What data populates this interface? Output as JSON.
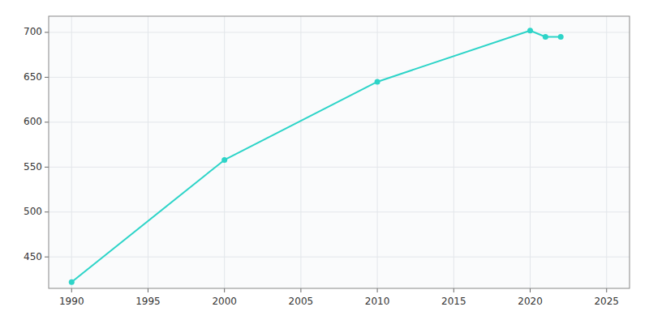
{
  "chart_data": {
    "type": "line",
    "x": [
      1990,
      2000,
      2010,
      2020,
      2021,
      2022
    ],
    "values": [
      422,
      558,
      645,
      702,
      695,
      695
    ],
    "color": "#2DD4C8",
    "marker": "circle",
    "xlim": [
      1988.5,
      2026.5
    ],
    "ylim": [
      415,
      718
    ],
    "xticks": [
      1990,
      1995,
      2000,
      2005,
      2010,
      2015,
      2020,
      2025
    ],
    "yticks": [
      450,
      500,
      550,
      600,
      650,
      700
    ],
    "grid": true
  }
}
